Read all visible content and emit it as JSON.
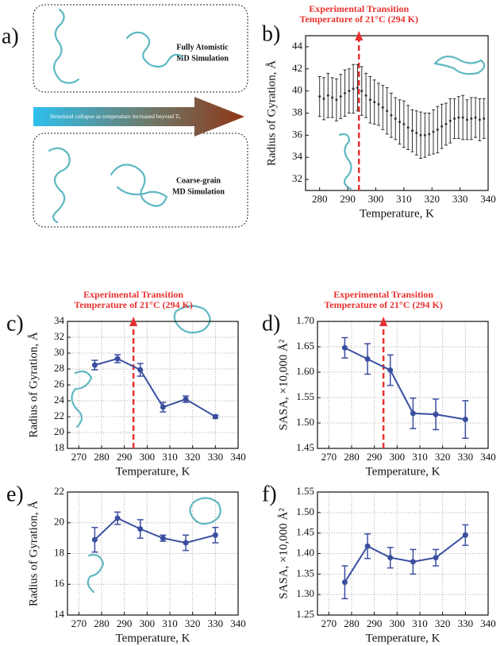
{
  "diagram": {
    "label": "a)",
    "top_text": [
      "Fully Atomistic",
      "MD Simulation"
    ],
    "arrow_text": "Structural collapse as temperature increased beyond T",
    "arrow_sub": "t",
    "bottom_text": [
      "Coarse-grain",
      "MD Simulation"
    ]
  },
  "chart_data": [
    {
      "label": "b)",
      "type": "scatter",
      "color": "#333333",
      "xlabel": "Temperature, K",
      "ylabel": "Radius of Gyration, Å",
      "annotation": [
        "Experimental Transition",
        "Temperature of 21°C (294 K)"
      ],
      "annotation_x": 294,
      "x": [
        280,
        281.5,
        283,
        284.5,
        286,
        287.5,
        289,
        290.5,
        292,
        293.5,
        295,
        296.5,
        298,
        299.5,
        301,
        302.5,
        304,
        305.5,
        307,
        308.5,
        310,
        311.5,
        313,
        314.5,
        316,
        317.5,
        319,
        320.5,
        322,
        323.5,
        325,
        326.5,
        328,
        329.5,
        331,
        332.5,
        334,
        335.5,
        337,
        338.5
      ],
      "values": [
        39.5,
        39.3,
        39.6,
        39.4,
        39.2,
        39.5,
        39.8,
        40.0,
        40.2,
        40.3,
        40.0,
        39.6,
        39.2,
        39.0,
        38.8,
        38.5,
        38.2,
        37.8,
        37.5,
        37.2,
        37.0,
        36.7,
        36.4,
        36.2,
        36.0,
        36.0,
        36.1,
        36.3,
        36.5,
        36.8,
        37.0,
        37.3,
        37.5,
        37.6,
        37.6,
        37.4,
        37.5,
        37.6,
        37.4,
        37.5
      ],
      "errors": [
        1.8,
        1.9,
        2.0,
        1.8,
        1.9,
        2.0,
        2.1,
        2.0,
        2.2,
        2.1,
        2.2,
        2.0,
        2.1,
        2.0,
        1.9,
        2.0,
        2.1,
        2.0,
        1.9,
        2.0,
        2.1,
        2.0,
        1.9,
        2.0,
        2.1,
        2.0,
        1.9,
        2.0,
        2.1,
        2.0,
        1.9,
        2.0,
        1.8,
        1.9,
        2.0,
        1.8,
        1.9,
        1.8,
        1.9,
        1.8
      ],
      "xlim": [
        275,
        340
      ],
      "xticks": [
        280,
        290,
        300,
        310,
        320,
        330,
        340
      ],
      "ylim": [
        31,
        45
      ],
      "yticks": [
        32,
        34,
        36,
        38,
        40,
        42,
        44
      ],
      "grid": false
    },
    {
      "label": "c)",
      "type": "line",
      "color": "#3b4fa0",
      "xlabel": "Temperature, K",
      "ylabel": "Radius of Gyration, Å",
      "annotation": [
        "Experimental Transition",
        "Temperature of 21°C (294 K)"
      ],
      "annotation_x": 294,
      "x": [
        277,
        287,
        297,
        307,
        317,
        330
      ],
      "values": [
        28.5,
        29.3,
        27.9,
        23.2,
        24.2,
        22.0
      ],
      "errors": [
        0.6,
        0.5,
        0.8,
        0.6,
        0.4,
        0.2
      ],
      "xlim": [
        265,
        340
      ],
      "xticks": [
        270,
        280,
        290,
        300,
        310,
        320,
        330,
        340
      ],
      "ylim": [
        18,
        34
      ],
      "yticks": [
        18,
        20,
        22,
        24,
        26,
        28,
        30,
        32,
        34
      ],
      "grid": true
    },
    {
      "label": "d)",
      "type": "line",
      "color": "#3b4fa0",
      "xlabel": "Temperature, K",
      "ylabel": "SASA, ×10,000 Å²",
      "annotation": [
        "Experimental Transition",
        "Temperature of 21°C (294 K)"
      ],
      "annotation_x": 294,
      "x": [
        277,
        287,
        297,
        307,
        317,
        330
      ],
      "values": [
        1.648,
        1.626,
        1.604,
        1.519,
        1.517,
        1.507
      ],
      "errors": [
        0.02,
        0.03,
        0.03,
        0.03,
        0.03,
        0.037
      ],
      "xlim": [
        265,
        340
      ],
      "xticks": [
        270,
        280,
        290,
        300,
        310,
        320,
        330,
        340
      ],
      "ylim": [
        1.45,
        1.7
      ],
      "yticks": [
        1.45,
        {
          "value": 1.5,
          "label": "1.50"
        },
        1.55,
        {
          "value": 1.6,
          "label": "1.60"
        },
        1.65,
        {
          "value": 1.7,
          "label": "1.70"
        }
      ],
      "grid": true
    },
    {
      "label": "e)",
      "type": "line",
      "color": "#3b4fa0",
      "xlabel": "Temperature, K",
      "ylabel": "Radius of Gyration, Å",
      "x": [
        277,
        287,
        297,
        307,
        317,
        330
      ],
      "values": [
        18.9,
        20.3,
        19.6,
        19.0,
        18.7,
        19.2
      ],
      "errors": [
        0.8,
        0.4,
        0.6,
        0.2,
        0.5,
        0.5
      ],
      "xlim": [
        265,
        340
      ],
      "xticks": [
        270,
        280,
        290,
        300,
        310,
        320,
        330,
        340
      ],
      "ylim": [
        14,
        22
      ],
      "yticks": [
        14,
        16,
        18,
        20,
        22
      ],
      "grid": true
    },
    {
      "label": "f)",
      "type": "line",
      "color": "#3b4fa0",
      "xlabel": "Temperature, K",
      "ylabel": "SASA, ×10,000 Å²",
      "x": [
        277,
        287,
        297,
        307,
        317,
        330
      ],
      "values": [
        1.33,
        1.418,
        1.39,
        1.38,
        1.39,
        1.445
      ],
      "errors": [
        0.04,
        0.03,
        0.025,
        0.03,
        0.02,
        0.025
      ],
      "xlim": [
        265,
        340
      ],
      "xticks": [
        270,
        280,
        290,
        300,
        310,
        320,
        330,
        340
      ],
      "ylim": [
        1.25,
        1.55
      ],
      "yticks": [
        1.25,
        {
          "value": 1.3,
          "label": "1.30"
        },
        1.35,
        {
          "value": 1.4,
          "label": "1.40"
        },
        1.45,
        {
          "value": 1.5,
          "label": "1.50"
        },
        1.55
      ],
      "grid": true
    }
  ]
}
